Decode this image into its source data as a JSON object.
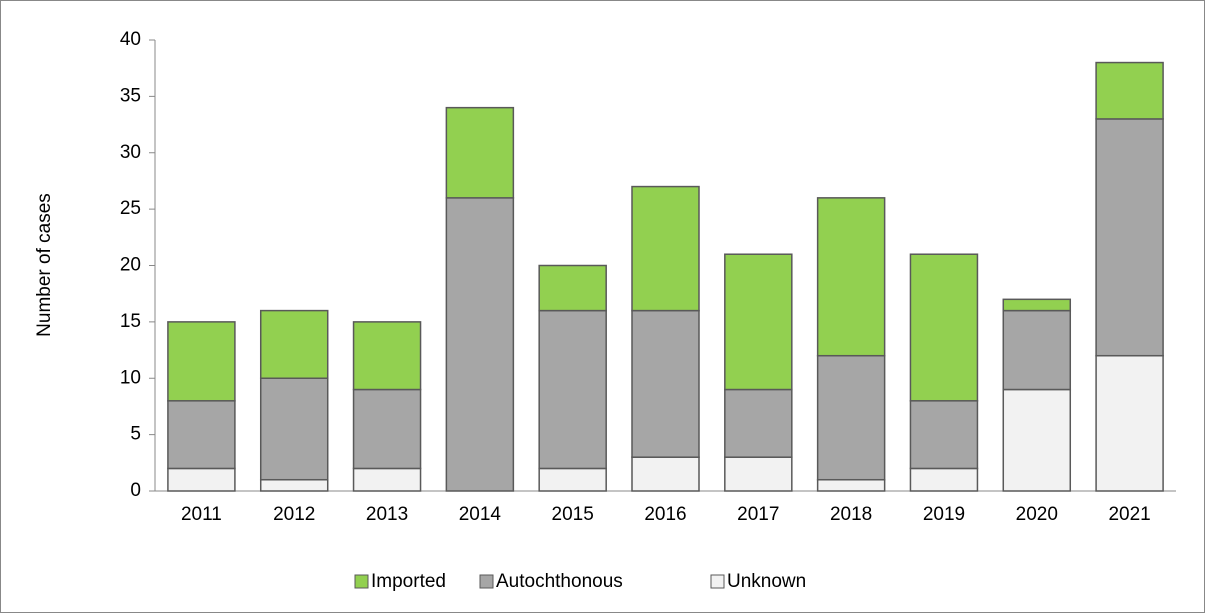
{
  "chart_data": {
    "type": "stacked_bar",
    "y_label": "Number of cases",
    "categories": [
      "2011",
      "2012",
      "2013",
      "2014",
      "2015",
      "2016",
      "2017",
      "2018",
      "2019",
      "2020",
      "2021"
    ],
    "series": [
      {
        "name": "Imported",
        "color": "#92d050",
        "values": [
          7,
          6,
          6,
          8,
          4,
          11,
          12,
          14,
          13,
          1,
          5
        ]
      },
      {
        "name": "Autochthonous",
        "color": "#a6a6a6",
        "values": [
          6,
          9,
          7,
          26,
          14,
          13,
          6,
          11,
          6,
          7,
          21
        ]
      },
      {
        "name": "Unknown",
        "color": "#f2f2f2",
        "values": [
          2,
          1,
          2,
          0,
          2,
          3,
          3,
          1,
          2,
          9,
          12
        ]
      }
    ],
    "stack_order": "bottom_up_reverse",
    "ylim": [
      0,
      40
    ],
    "yticks": [
      0,
      5,
      10,
      15,
      20,
      25,
      30,
      35,
      40
    ],
    "legend": "bottom"
  }
}
